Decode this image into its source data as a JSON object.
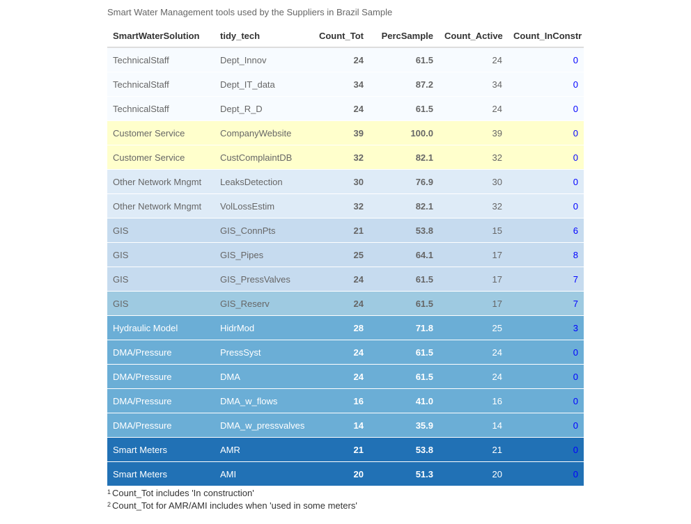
{
  "caption": "Smart Water Management tools used by the Suppliers in Brazil Sample",
  "columns": [
    "SmartWaterSolution",
    "tidy_tech",
    "Count_Tot",
    "PercSample",
    "Count_Active",
    "Count_InConstr"
  ],
  "row_colors": {
    "staff": "#f7fbff",
    "customer": "#ffffcc",
    "network": "#deebf7",
    "gis": "#c6dbef",
    "gis_reserv": "#9ecae1",
    "hydraulic": "#6baed6",
    "dma": "#6baed6",
    "meters": "#2171b5",
    "text_dark": "#666666",
    "text_light": "#ffffff",
    "inconstr_text": "#0000ff"
  },
  "rows": [
    {
      "solution": "TechnicalStaff",
      "tech": "Dept_Innov",
      "count_tot": "24",
      "perc": "61.5",
      "active": "24",
      "inconstr": "0"
    },
    {
      "solution": "TechnicalStaff",
      "tech": "Dept_IT_data",
      "count_tot": "34",
      "perc": "87.2",
      "active": "34",
      "inconstr": "0"
    },
    {
      "solution": "TechnicalStaff",
      "tech": "Dept_R_D",
      "count_tot": "24",
      "perc": "61.5",
      "active": "24",
      "inconstr": "0"
    },
    {
      "solution": "Customer Service",
      "tech": "CompanyWebsite",
      "count_tot": "39",
      "perc": "100.0",
      "active": "39",
      "inconstr": "0"
    },
    {
      "solution": "Customer Service",
      "tech": "CustComplaintDB",
      "count_tot": "32",
      "perc": "82.1",
      "active": "32",
      "inconstr": "0"
    },
    {
      "solution": "Other Network Mngmt",
      "tech": "LeaksDetection",
      "count_tot": "30",
      "perc": "76.9",
      "active": "30",
      "inconstr": "0"
    },
    {
      "solution": "Other Network Mngmt",
      "tech": "VolLossEstim",
      "count_tot": "32",
      "perc": "82.1",
      "active": "32",
      "inconstr": "0"
    },
    {
      "solution": "GIS",
      "tech": "GIS_ConnPts",
      "count_tot": "21",
      "perc": "53.8",
      "active": "15",
      "inconstr": "6"
    },
    {
      "solution": "GIS",
      "tech": "GIS_Pipes",
      "count_tot": "25",
      "perc": "64.1",
      "active": "17",
      "inconstr": "8"
    },
    {
      "solution": "GIS",
      "tech": "GIS_PressValves",
      "count_tot": "24",
      "perc": "61.5",
      "active": "17",
      "inconstr": "7"
    },
    {
      "solution": "GIS",
      "tech": "GIS_Reserv",
      "count_tot": "24",
      "perc": "61.5",
      "active": "17",
      "inconstr": "7"
    },
    {
      "solution": "Hydraulic Model",
      "tech": "HidrMod",
      "count_tot": "28",
      "perc": "71.8",
      "active": "25",
      "inconstr": "3"
    },
    {
      "solution": "DMA/Pressure",
      "tech": "PressSyst",
      "count_tot": "24",
      "perc": "61.5",
      "active": "24",
      "inconstr": "0"
    },
    {
      "solution": "DMA/Pressure",
      "tech": "DMA",
      "count_tot": "24",
      "perc": "61.5",
      "active": "24",
      "inconstr": "0"
    },
    {
      "solution": "DMA/Pressure",
      "tech": "DMA_w_flows",
      "count_tot": "16",
      "perc": "41.0",
      "active": "16",
      "inconstr": "0"
    },
    {
      "solution": "DMA/Pressure",
      "tech": "DMA_w_pressvalves",
      "count_tot": "14",
      "perc": "35.9",
      "active": "14",
      "inconstr": "0"
    },
    {
      "solution": "Smart Meters",
      "tech": "AMR",
      "count_tot": "21",
      "perc": "53.8",
      "active": "21",
      "inconstr": "0"
    },
    {
      "solution": "Smart Meters",
      "tech": "AMI",
      "count_tot": "20",
      "perc": "51.3",
      "active": "20",
      "inconstr": "0"
    }
  ],
  "footnotes": [
    {
      "mark": "1",
      "text": "Count_Tot includes 'In construction'"
    },
    {
      "mark": "2",
      "text": "Count_Tot for AMR/AMI includes when 'used in some meters'"
    }
  ]
}
